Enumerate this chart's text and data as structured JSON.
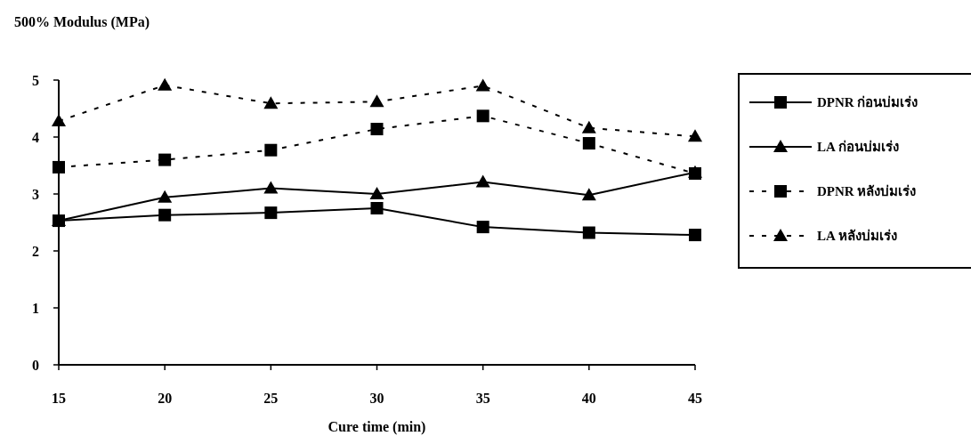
{
  "chart_data": {
    "type": "line",
    "ylabel": "500% Modulus (MPa)",
    "xlabel": "Cure time (min)",
    "x": [
      15,
      20,
      25,
      30,
      35,
      40,
      45
    ],
    "xlim": [
      15,
      45
    ],
    "xticks": [
      15,
      20,
      25,
      30,
      35,
      40,
      45
    ],
    "ylim": [
      0,
      5
    ],
    "yticks": [
      0,
      1,
      2,
      3,
      4,
      5
    ],
    "grid": false,
    "legend": "right",
    "series": [
      {
        "name": "DPNR ก่อนบ่มเร่ง",
        "color": "#000000",
        "marker": "square",
        "line_style": "solid",
        "values": [
          2.53,
          2.63,
          2.67,
          2.75,
          2.42,
          2.32,
          2.28
        ]
      },
      {
        "name": "LA ก่อนบ่มเร่ง",
        "color": "#000000",
        "marker": "triangle",
        "line_style": "solid",
        "values": [
          2.53,
          2.94,
          3.1,
          3.0,
          3.21,
          2.98,
          3.38
        ]
      },
      {
        "name": "DPNR หลังบ่มเร่ง",
        "color": "#000000",
        "marker": "square",
        "line_style": "dashed",
        "values": [
          3.47,
          3.6,
          3.77,
          4.14,
          4.37,
          3.89,
          3.36
        ]
      },
      {
        "name": "LA หลังบ่มเร่ง",
        "color": "#000000",
        "marker": "triangle",
        "line_style": "dashed",
        "values": [
          4.28,
          4.91,
          4.59,
          4.62,
          4.9,
          4.16,
          4.01
        ]
      }
    ]
  }
}
